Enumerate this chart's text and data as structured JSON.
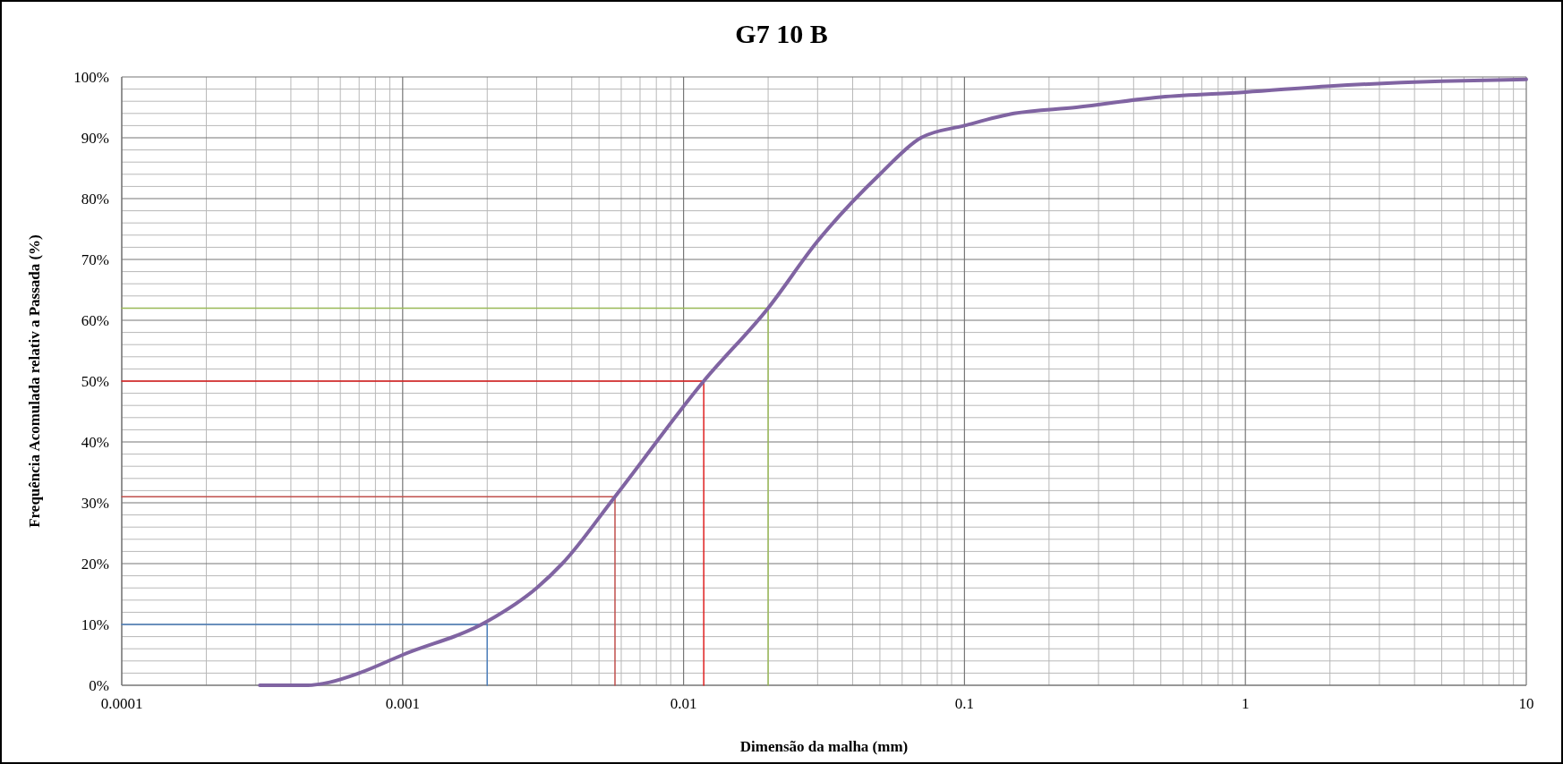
{
  "chart_data": {
    "type": "line",
    "title": "G7 10 B",
    "xlabel": "Dimensão da malha (mm)",
    "ylabel": "Frequência Acomulada relativ a Passada (%)",
    "log": "x",
    "grid": true,
    "marker": "none",
    "line_style": "solid",
    "xlim": [
      0.0001,
      10
    ],
    "xticks": [
      0.0001,
      0.001,
      0.01,
      0.1,
      1,
      10
    ],
    "ylim": [
      0,
      100
    ],
    "yticks": [
      {
        "value": 0,
        "label": "0%"
      },
      {
        "value": 10,
        "label": "10%"
      },
      {
        "value": 20,
        "label": "20%"
      },
      {
        "value": 30,
        "label": "30%"
      },
      {
        "value": 40,
        "label": "40%"
      },
      {
        "value": 50,
        "label": "50%"
      },
      {
        "value": 60,
        "label": "60%"
      },
      {
        "value": 70,
        "label": "70%"
      },
      {
        "value": 80,
        "label": "80%"
      },
      {
        "value": 90,
        "label": "90%"
      },
      {
        "value": 100,
        "label": "100%"
      }
    ],
    "series": [
      {
        "color": "#8064a2",
        "x": [
          0.00031,
          0.00046,
          0.00055,
          0.0007,
          0.001,
          0.002,
          0.003,
          0.0037,
          0.0057,
          0.0118,
          0.02,
          0.03,
          0.05,
          0.07,
          0.1,
          0.15,
          0.25,
          0.5,
          1,
          2,
          5,
          10
        ],
        "values": [
          0,
          0,
          0.5,
          2,
          5,
          10.5,
          16,
          20,
          31,
          50,
          62,
          73,
          84,
          90,
          92,
          94,
          95,
          96.7,
          97.5,
          98.5,
          99.3,
          99.6
        ]
      },
      {
        "color": "#4f81bd",
        "x": [
          0.0001,
          0.002,
          0.002
        ],
        "values": [
          10,
          10,
          0
        ]
      },
      {
        "color": "#c0504d",
        "x": [
          0.0001,
          0.0057,
          0.0057
        ],
        "values": [
          31,
          31,
          0
        ]
      },
      {
        "color": "#e02020",
        "x": [
          0.0001,
          0.0118,
          0.0118
        ],
        "values": [
          50,
          50,
          0
        ]
      },
      {
        "color": "#9bbb59",
        "x": [
          0.0001,
          0.02,
          0.02
        ],
        "values": [
          62,
          62,
          0
        ]
      }
    ]
  }
}
